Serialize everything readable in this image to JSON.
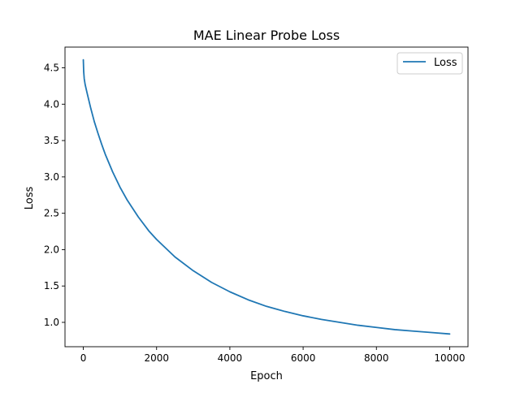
{
  "chart_data": {
    "type": "line",
    "title": "MAE Linear Probe Loss",
    "xlabel": "Epoch",
    "ylabel": "Loss",
    "xlim": [
      -500,
      10500
    ],
    "ylim": [
      0.665,
      4.785
    ],
    "xticks": [
      0,
      2000,
      4000,
      6000,
      8000,
      10000
    ],
    "xtick_labels": [
      "0",
      "2000",
      "4000",
      "6000",
      "8000",
      "10000"
    ],
    "yticks": [
      1.0,
      1.5,
      2.0,
      2.5,
      3.0,
      3.5,
      4.0,
      4.5
    ],
    "ytick_labels": [
      "1.0",
      "1.5",
      "2.0",
      "2.5",
      "3.0",
      "3.5",
      "4.0",
      "4.5"
    ],
    "grid": false,
    "legend_position": "top-right",
    "series": [
      {
        "name": "Loss",
        "color": "#1f77b4",
        "x": [
          0,
          10,
          25,
          50,
          100,
          200,
          300,
          400,
          500,
          600,
          800,
          1000,
          1200,
          1500,
          1800,
          2000,
          2500,
          3000,
          3500,
          4000,
          4500,
          5000,
          5500,
          6000,
          6500,
          7000,
          7500,
          8000,
          8500,
          9000,
          9500,
          10000
        ],
        "y": [
          4.61,
          4.45,
          4.35,
          4.27,
          4.16,
          3.95,
          3.76,
          3.6,
          3.45,
          3.31,
          3.07,
          2.86,
          2.68,
          2.45,
          2.25,
          2.14,
          1.9,
          1.71,
          1.55,
          1.42,
          1.31,
          1.22,
          1.15,
          1.09,
          1.04,
          1.0,
          0.96,
          0.93,
          0.9,
          0.88,
          0.86,
          0.84
        ]
      }
    ]
  }
}
